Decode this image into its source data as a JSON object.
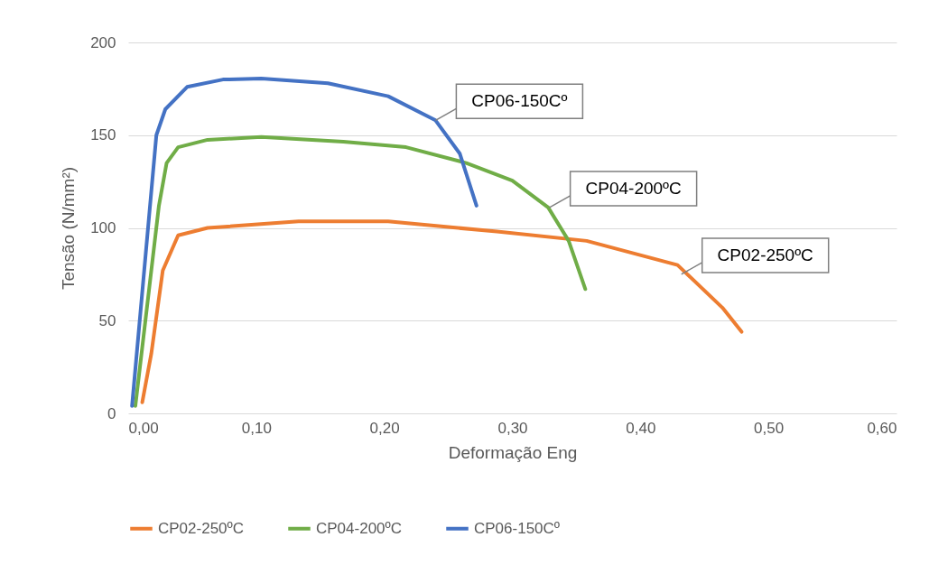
{
  "chart_data": {
    "type": "line",
    "xlabel": "Deformação Eng",
    "ylabel": "Tensão (N/mm²)",
    "xlim": [
      0,
      0.6
    ],
    "ylim": [
      0,
      200
    ],
    "xticks": [
      {
        "value": 0,
        "label": "0,00"
      },
      {
        "value": 0.1,
        "label": "0,10"
      },
      {
        "value": 0.2,
        "label": "0,20"
      },
      {
        "value": 0.3,
        "label": "0,30"
      },
      {
        "value": 0.4,
        "label": "0,40"
      },
      {
        "value": 0.5,
        "label": "0,50"
      },
      {
        "value": 0.6,
        "label": "0,60"
      }
    ],
    "yticks": [
      0,
      50,
      100,
      150,
      200
    ],
    "grid": "y",
    "legend": "bottom",
    "marker": "none",
    "line_style": "solid",
    "series": [
      {
        "name": "CP02-250ºC",
        "color": "#ed7d31",
        "x": [
          0.011,
          0.018,
          0.027,
          0.039,
          0.062,
          0.133,
          0.203,
          0.288,
          0.358,
          0.429,
          0.464,
          0.479
        ],
        "values": [
          6,
          32,
          77,
          96,
          100,
          103.5,
          103.5,
          98,
          93,
          80,
          57,
          44
        ]
      },
      {
        "name": "CP04-200ºC",
        "color": "#70ad47",
        "x": [
          0.0056,
          0.024,
          0.03,
          0.039,
          0.062,
          0.104,
          0.168,
          0.217,
          0.264,
          0.3,
          0.328,
          0.344,
          0.357
        ],
        "values": [
          4,
          112,
          135,
          143.5,
          147.5,
          149,
          146.5,
          143.5,
          135,
          125.5,
          111,
          93,
          67
        ]
      },
      {
        "name": "CP06-150Cº",
        "color": "#4472c4",
        "x": [
          0.003,
          0.022,
          0.029,
          0.046,
          0.074,
          0.104,
          0.156,
          0.203,
          0.24,
          0.259,
          0.272
        ],
        "values": [
          4,
          150,
          164,
          176,
          180,
          180.5,
          178,
          171,
          158,
          140,
          112
        ]
      }
    ],
    "annotations": [
      {
        "text": "CP06-150Cº",
        "x": 0.24,
        "y": 158
      },
      {
        "text": "CP04-200ºC",
        "x": 0.329,
        "y": 111
      },
      {
        "text": "CP02-250ºC",
        "x": 0.432,
        "y": 75
      }
    ]
  }
}
